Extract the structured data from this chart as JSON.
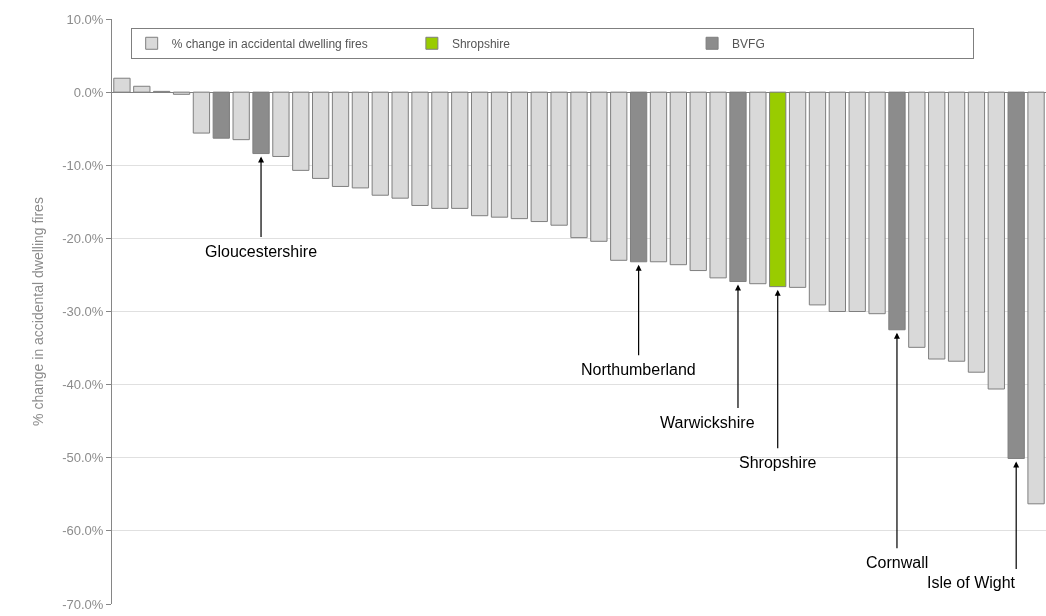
{
  "chart_data": {
    "type": "bar",
    "ylabel": "% change in accidental dwelling fires",
    "categories": [
      null,
      null,
      null,
      null,
      null,
      null,
      null,
      null,
      null,
      null,
      null,
      null,
      null,
      null,
      null,
      null,
      null,
      null,
      null,
      null,
      null,
      null,
      null,
      null,
      null,
      null,
      null,
      null,
      null,
      null,
      null,
      null,
      null,
      null,
      null,
      null,
      null,
      null,
      null,
      null,
      null,
      null,
      null,
      null,
      null,
      null,
      null
    ],
    "series": [
      {
        "name": "% change in accidental dwelling fires",
        "color": "#d9d9d9",
        "values": [
          1.9,
          0.8,
          0.1,
          -0.3,
          -5.6,
          null,
          -6.5,
          null,
          -8.8,
          -10.7,
          -11.8,
          -12.9,
          -13.1,
          -14.1,
          -14.5,
          -15.5,
          -15.9,
          -15.9,
          -16.9,
          -17.1,
          -17.3,
          -17.7,
          -18.2,
          -19.9,
          -20.4,
          -23.0,
          null,
          -23.2,
          -23.6,
          -24.4,
          -25.4,
          null,
          -26.2,
          null,
          -26.7,
          -29.1,
          -30.0,
          -30.0,
          -30.3,
          null,
          -34.9,
          -36.5,
          -36.8,
          -38.3,
          -40.6,
          null,
          -56.3
        ]
      },
      {
        "name": "Shropshire",
        "color": "#99cc00",
        "values": [
          null,
          null,
          null,
          null,
          null,
          null,
          null,
          null,
          null,
          null,
          null,
          null,
          null,
          null,
          null,
          null,
          null,
          null,
          null,
          null,
          null,
          null,
          null,
          null,
          null,
          null,
          null,
          null,
          null,
          null,
          null,
          null,
          null,
          -26.6,
          null,
          null,
          null,
          null,
          null,
          null,
          null,
          null,
          null,
          null,
          null,
          null,
          null
        ]
      },
      {
        "name": "BVFG",
        "color": "#8c8c8c",
        "values": [
          null,
          null,
          null,
          null,
          null,
          -6.3,
          null,
          -8.4,
          null,
          null,
          null,
          null,
          null,
          null,
          null,
          null,
          null,
          null,
          null,
          null,
          null,
          null,
          null,
          null,
          null,
          null,
          -23.2,
          null,
          null,
          null,
          null,
          -25.9,
          null,
          null,
          null,
          null,
          null,
          null,
          null,
          -32.5,
          null,
          null,
          null,
          null,
          null,
          -50.1,
          null
        ]
      }
    ],
    "annotations": [
      "Gloucestershire",
      "Northumberland",
      "Warwickshire",
      "Shropshire",
      "Cornwall",
      "Isle of Wight"
    ],
    "ylim": [
      -70,
      10
    ],
    "yticks": [
      {
        "value": 10,
        "label": "10.0%"
      },
      {
        "value": 0,
        "label": "0.0%"
      },
      {
        "value": -10,
        "label": "-10.0%"
      },
      {
        "value": -20,
        "label": "-20.0%"
      },
      {
        "value": -30,
        "label": "-30.0%"
      },
      {
        "value": -40,
        "label": "-40.0%"
      },
      {
        "value": -50,
        "label": "-50.0%"
      },
      {
        "value": -60,
        "label": "-60.0%"
      },
      {
        "value": -70,
        "label": "-70.0%"
      }
    ],
    "grid": "y",
    "legend": "top",
    "tick_labels": "y"
  }
}
